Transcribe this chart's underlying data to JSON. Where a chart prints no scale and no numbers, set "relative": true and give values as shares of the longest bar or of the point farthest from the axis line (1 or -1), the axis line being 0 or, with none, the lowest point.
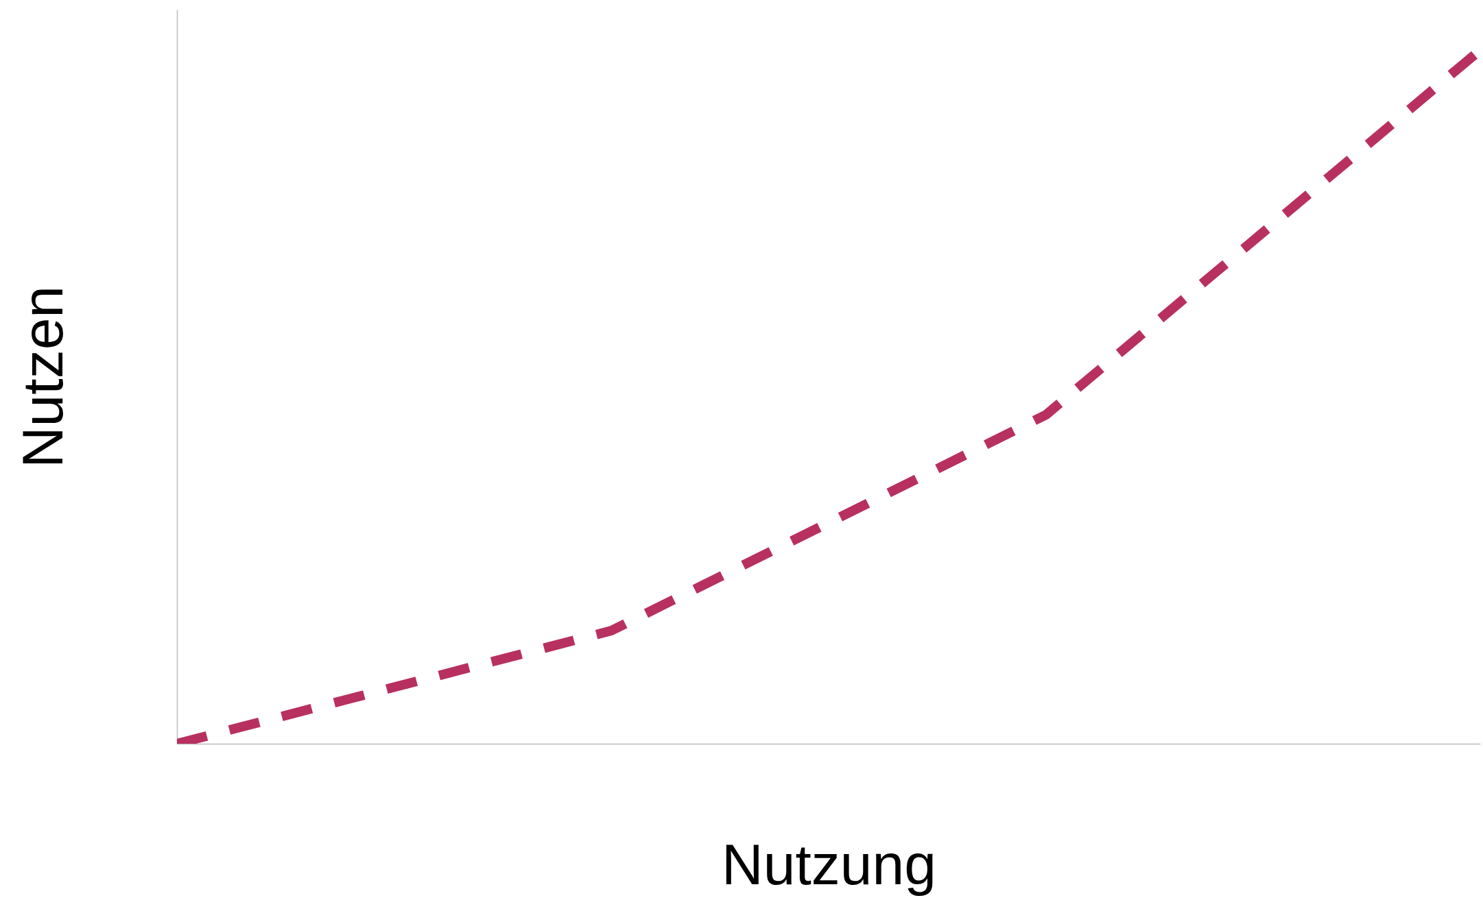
{
  "chart_data": {
    "type": "line",
    "xlabel": "Nutzung",
    "ylabel": "Nutzen",
    "categories": [
      null,
      null,
      null,
      null
    ],
    "relative": true,
    "series": [
      {
        "color": "#b83060",
        "values": [
          0,
          0.163,
          0.474,
          1
        ]
      }
    ],
    "line_style": "dashed",
    "grid": false,
    "tick_labels": false
  }
}
